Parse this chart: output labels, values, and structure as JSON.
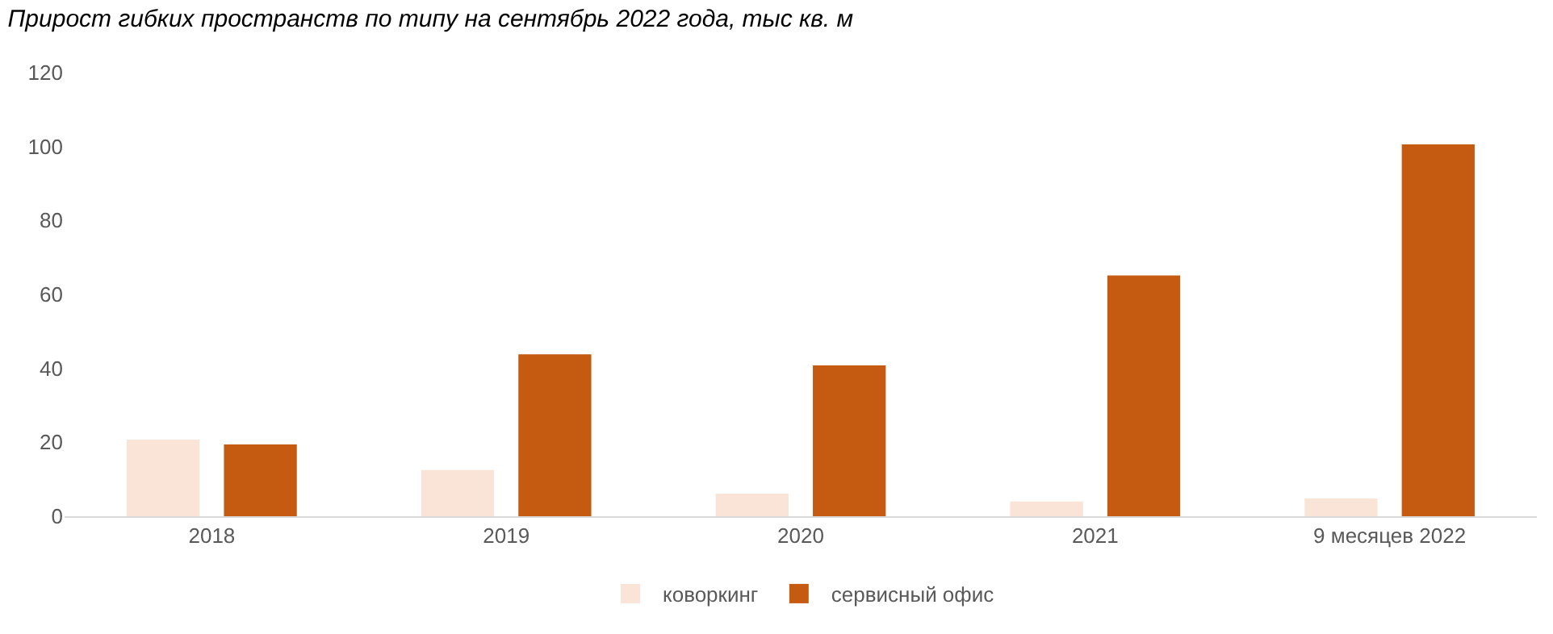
{
  "chart_data": {
    "type": "bar",
    "title": "Прирост гибких пространств по типу на сентябрь 2022 года, тыс кв. м",
    "categories": [
      "2018",
      "2019",
      "2020",
      "2021",
      "9 месяцев 2022"
    ],
    "series": [
      {
        "name": "коворкинг",
        "color": "#fae4d8",
        "values": [
          20.7,
          12.5,
          6.1,
          4.0,
          4.8
        ]
      },
      {
        "name": "сервисный офис",
        "color": "#c55a11",
        "values": [
          19.4,
          43.8,
          40.8,
          65.1,
          100.6
        ]
      }
    ],
    "ylim": [
      0,
      120
    ],
    "yticks": [
      0,
      20,
      40,
      60,
      80,
      100,
      120
    ],
    "grid": false,
    "legend": "bottom"
  }
}
